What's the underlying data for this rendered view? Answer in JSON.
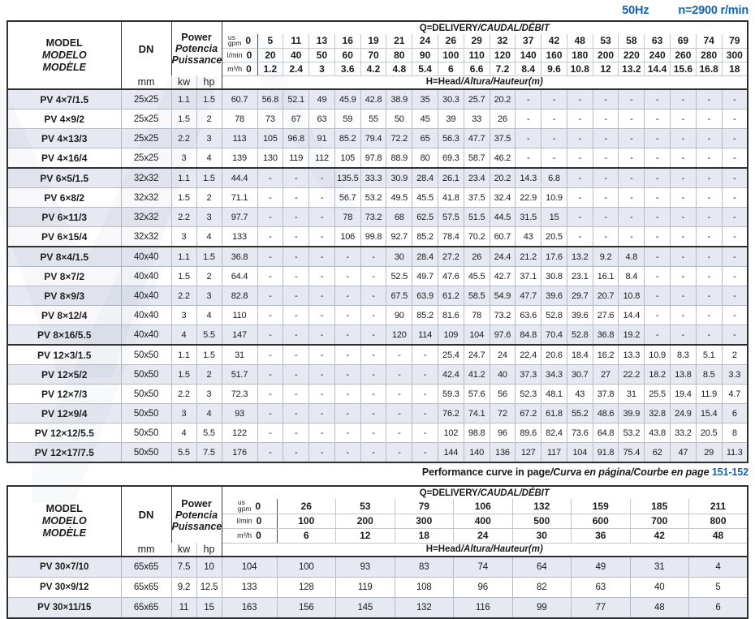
{
  "page_header": {
    "frequency": "50Hz",
    "speed": "n=2900 r/min"
  },
  "colors": {
    "accent_blue": "#1364b0",
    "row_shade": "#e6e9f1",
    "grid_line": "#b6bcc7",
    "frame": "#2e2e2e"
  },
  "labels": {
    "model_en": "MODEL",
    "model_es": "MODELO",
    "model_fr": "MODÈLE",
    "dn": "DN",
    "mm": "mm",
    "power_en": "Power",
    "power_es": "Potencia",
    "power_fr": "Puissance",
    "kw": "kw",
    "hp": "hp",
    "unit_us": "us",
    "unit_gpm": "gpm",
    "unit_lmin": "l/min",
    "unit_m3h": "m³/h",
    "q_main": "Q=DELIVERY",
    "q_i18n": "/CAUDAL/DÉBIT",
    "h_main": "H=Head",
    "h_i18n": "/Altura/Hauteur(m)"
  },
  "note": {
    "main": "Performance curve in page",
    "i18n": "/Curva en página/Courbe en page",
    "pages": "151-152"
  },
  "table1": {
    "gpm": [
      "0",
      "5",
      "11",
      "13",
      "16",
      "19",
      "21",
      "24",
      "26",
      "29",
      "32",
      "37",
      "42",
      "48",
      "53",
      "58",
      "63",
      "69",
      "74",
      "79"
    ],
    "lmin": [
      "0",
      "20",
      "40",
      "50",
      "60",
      "70",
      "80",
      "90",
      "100",
      "110",
      "120",
      "140",
      "160",
      "180",
      "200",
      "220",
      "240",
      "260",
      "280",
      "300"
    ],
    "m3h": [
      "0",
      "1.2",
      "2.4",
      "3",
      "3.6",
      "4.2",
      "4.8",
      "5.4",
      "6",
      "6.6",
      "7.2",
      "8.4",
      "9.6",
      "10.8",
      "12",
      "13.2",
      "14.4",
      "15.6",
      "16.8",
      "18"
    ],
    "rows": [
      {
        "model": "PV 4×7/1.5",
        "dn": "25x25",
        "kw": "1.1",
        "hp": "1.5",
        "head": [
          "60.7",
          "56.8",
          "52.1",
          "49",
          "45.9",
          "42.8",
          "38.9",
          "35",
          "30.3",
          "25.7",
          "20.2",
          "-",
          "-",
          "-",
          "-",
          "-",
          "-",
          "-",
          "-",
          "-"
        ]
      },
      {
        "model": "PV 4×9/2",
        "dn": "25x25",
        "kw": "1.5",
        "hp": "2",
        "head": [
          "78",
          "73",
          "67",
          "63",
          "59",
          "55",
          "50",
          "45",
          "39",
          "33",
          "26",
          "-",
          "-",
          "-",
          "-",
          "-",
          "-",
          "-",
          "-",
          "-"
        ]
      },
      {
        "model": "PV 4×13/3",
        "dn": "25x25",
        "kw": "2.2",
        "hp": "3",
        "head": [
          "113",
          "105",
          "96.8",
          "91",
          "85.2",
          "79.4",
          "72.2",
          "65",
          "56.3",
          "47.7",
          "37.5",
          "-",
          "-",
          "-",
          "-",
          "-",
          "-",
          "-",
          "-",
          "-"
        ]
      },
      {
        "model": "PV 4×16/4",
        "dn": "25x25",
        "kw": "3",
        "hp": "4",
        "head": [
          "139",
          "130",
          "119",
          "112",
          "105",
          "97.8",
          "88.9",
          "80",
          "69.3",
          "58.7",
          "46.2",
          "-",
          "-",
          "-",
          "-",
          "-",
          "-",
          "-",
          "-",
          "-"
        ]
      },
      {
        "model": "PV 6×5/1.5",
        "dn": "32x32",
        "kw": "1.1",
        "hp": "1.5",
        "sep": true,
        "head": [
          "44.4",
          "-",
          "-",
          "-",
          "135.5",
          "33.3",
          "30.9",
          "28.4",
          "26.1",
          "23.4",
          "20.2",
          "14.3",
          "6.8",
          "-",
          "-",
          "-",
          "-",
          "-",
          "-",
          "-"
        ]
      },
      {
        "model": "PV 6×8/2",
        "dn": "32x32",
        "kw": "1.5",
        "hp": "2",
        "head": [
          "71.1",
          "-",
          "-",
          "-",
          "56.7",
          "53.2",
          "49.5",
          "45.5",
          "41.8",
          "37.5",
          "32.4",
          "22.9",
          "10.9",
          "-",
          "-",
          "-",
          "-",
          "-",
          "-",
          "-"
        ]
      },
      {
        "model": "PV 6×11/3",
        "dn": "32x32",
        "kw": "2.2",
        "hp": "3",
        "head": [
          "97.7",
          "-",
          "-",
          "-",
          "78",
          "73.2",
          "68",
          "62.5",
          "57.5",
          "51.5",
          "44.5",
          "31.5",
          "15",
          "-",
          "-",
          "-",
          "-",
          "-",
          "-",
          "-"
        ]
      },
      {
        "model": "PV 6×15/4",
        "dn": "32x32",
        "kw": "3",
        "hp": "4",
        "head": [
          "133",
          "-",
          "-",
          "-",
          "106",
          "99.8",
          "92.7",
          "85.2",
          "78.4",
          "70.2",
          "60.7",
          "43",
          "20.5",
          "-",
          "-",
          "-",
          "-",
          "-",
          "-",
          "-"
        ]
      },
      {
        "model": "PV 8×4/1.5",
        "dn": "40x40",
        "kw": "1.1",
        "hp": "1.5",
        "sep": true,
        "head": [
          "36.8",
          "-",
          "-",
          "-",
          "-",
          "-",
          "30",
          "28.4",
          "27.2",
          "26",
          "24.4",
          "21.2",
          "17.6",
          "13.2",
          "9.2",
          "4.8",
          "-",
          "-",
          "-",
          "-"
        ]
      },
      {
        "model": "PV 8×7/2",
        "dn": "40x40",
        "kw": "1.5",
        "hp": "2",
        "head": [
          "64.4",
          "-",
          "-",
          "-",
          "-",
          "-",
          "52.5",
          "49.7",
          "47.6",
          "45.5",
          "42.7",
          "37.1",
          "30.8",
          "23.1",
          "16.1",
          "8.4",
          "-",
          "-",
          "-",
          "-"
        ]
      },
      {
        "model": "PV 8×9/3",
        "dn": "40x40",
        "kw": "2.2",
        "hp": "3",
        "head": [
          "82.8",
          "-",
          "-",
          "-",
          "-",
          "-",
          "67.5",
          "63.9",
          "61.2",
          "58.5",
          "54.9",
          "47.7",
          "39.6",
          "29.7",
          "20.7",
          "10.8",
          "-",
          "-",
          "-",
          "-"
        ]
      },
      {
        "model": "PV 8×12/4",
        "dn": "40x40",
        "kw": "3",
        "hp": "4",
        "head": [
          "110",
          "-",
          "-",
          "-",
          "-",
          "-",
          "90",
          "85.2",
          "81.6",
          "78",
          "73.2",
          "63.6",
          "52.8",
          "39.6",
          "27.6",
          "14.4",
          "-",
          "-",
          "-",
          "-"
        ]
      },
      {
        "model": "PV 8×16/5.5",
        "dn": "40x40",
        "kw": "4",
        "hp": "5.5",
        "head": [
          "147",
          "-",
          "-",
          "-",
          "-",
          "-",
          "120",
          "114",
          "109",
          "104",
          "97.6",
          "84.8",
          "70.4",
          "52.8",
          "36.8",
          "19.2",
          "-",
          "-",
          "-",
          "-"
        ]
      },
      {
        "model": "PV 12×3/1.5",
        "dn": "50x50",
        "kw": "1.1",
        "hp": "1.5",
        "sep": true,
        "head": [
          "31",
          "-",
          "-",
          "-",
          "-",
          "-",
          "-",
          "-",
          "25.4",
          "24.7",
          "24",
          "22.4",
          "20.6",
          "18.4",
          "16.2",
          "13.3",
          "10.9",
          "8.3",
          "5.1",
          "2"
        ]
      },
      {
        "model": "PV 12×5/2",
        "dn": "50x50",
        "kw": "1.5",
        "hp": "2",
        "head": [
          "51.7",
          "-",
          "-",
          "-",
          "-",
          "-",
          "-",
          "-",
          "42.4",
          "41.2",
          "40",
          "37.3",
          "34.3",
          "30.7",
          "27",
          "22.2",
          "18.2",
          "13.8",
          "8.5",
          "3.3"
        ]
      },
      {
        "model": "PV 12×7/3",
        "dn": "50x50",
        "kw": "2.2",
        "hp": "3",
        "head": [
          "72.3",
          "-",
          "-",
          "-",
          "-",
          "-",
          "-",
          "-",
          "59.3",
          "57.6",
          "56",
          "52.3",
          "48.1",
          "43",
          "37.8",
          "31",
          "25.5",
          "19.4",
          "11.9",
          "4.7"
        ]
      },
      {
        "model": "PV 12×9/4",
        "dn": "50x50",
        "kw": "3",
        "hp": "4",
        "head": [
          "93",
          "-",
          "-",
          "-",
          "-",
          "-",
          "-",
          "-",
          "76.2",
          "74.1",
          "72",
          "67.2",
          "61.8",
          "55.2",
          "48.6",
          "39.9",
          "32.8",
          "24.9",
          "15.4",
          "6"
        ]
      },
      {
        "model": "PV 12×12/5.5",
        "dn": "50x50",
        "kw": "4",
        "hp": "5.5",
        "head": [
          "122",
          "-",
          "-",
          "-",
          "-",
          "-",
          "-",
          "-",
          "102",
          "98.8",
          "96",
          "89.6",
          "82.4",
          "73.6",
          "64.8",
          "53.2",
          "43.8",
          "33.2",
          "20.5",
          "8"
        ]
      },
      {
        "model": "PV 12×17/7.5",
        "dn": "50x50",
        "kw": "5.5",
        "hp": "7.5",
        "head": [
          "176",
          "-",
          "-",
          "-",
          "-",
          "-",
          "-",
          "-",
          "144",
          "140",
          "136",
          "127",
          "117",
          "104",
          "91.8",
          "75.4",
          "62",
          "47",
          "29",
          "11.3"
        ]
      }
    ]
  },
  "table2": {
    "gpm": [
      "0",
      "26",
      "53",
      "79",
      "106",
      "132",
      "159",
      "185",
      "211"
    ],
    "lmin": [
      "0",
      "100",
      "200",
      "300",
      "400",
      "500",
      "600",
      "700",
      "800"
    ],
    "m3h": [
      "0",
      "6",
      "12",
      "18",
      "24",
      "30",
      "36",
      "42",
      "48"
    ],
    "rows": [
      {
        "model": "PV 30×7/10",
        "dn": "65x65",
        "kw": "7.5",
        "hp": "10",
        "head": [
          "104",
          "100",
          "93",
          "83",
          "74",
          "64",
          "49",
          "31",
          "4"
        ]
      },
      {
        "model": "PV 30×9/12",
        "dn": "65x65",
        "kw": "9.2",
        "hp": "12.5",
        "head": [
          "133",
          "128",
          "119",
          "108",
          "96",
          "82",
          "63",
          "40",
          "5"
        ]
      },
      {
        "model": "PV 30×11/15",
        "dn": "65x65",
        "kw": "11",
        "hp": "15",
        "head": [
          "163",
          "156",
          "145",
          "132",
          "116",
          "99",
          "77",
          "48",
          "6"
        ]
      }
    ]
  }
}
